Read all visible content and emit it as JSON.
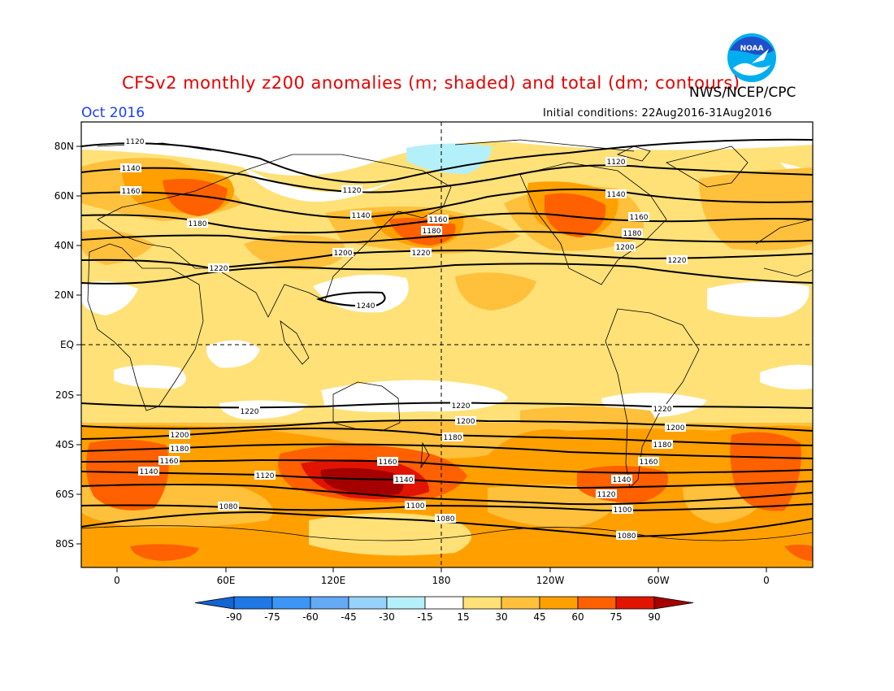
{
  "title": "CFSv2 monthly z200 anomalies (m; shaded) and total (dm; contours)",
  "agency": "NWS/NCEP/CPC",
  "logo_text": "NOAA",
  "valid_month": "Oct 2016",
  "initial_conditions": "Initial conditions: 22Aug2016-31Aug2016",
  "lat_labels": [
    "80N",
    "60N",
    "40N",
    "20N",
    "EQ",
    "20S",
    "40S",
    "60S",
    "80S"
  ],
  "lon_labels": [
    "0",
    "60E",
    "120E",
    "180",
    "120W",
    "60W",
    "0"
  ],
  "colorbar": {
    "labels": [
      "-90",
      "-75",
      "-60",
      "-45",
      "-30",
      "-15",
      "15",
      "30",
      "45",
      "60",
      "75",
      "90"
    ],
    "colors": [
      "#1464d2",
      "#1e78e6",
      "#3c96f5",
      "#64aaf5",
      "#96d2fa",
      "#b4f0fa",
      "#ffffff",
      "#ffe178",
      "#ffc03c",
      "#ffa000",
      "#ff6000",
      "#e11400",
      "#a50000"
    ]
  },
  "contour_labels": [
    "1080",
    "1100",
    "1120",
    "1140",
    "1160",
    "1180",
    "1200",
    "1220",
    "1240"
  ],
  "colors": {
    "title": "#e60000",
    "month": "#1e3cff",
    "logo_blue": "#1f4fc8",
    "logo_sky": "#00a0e0"
  }
}
